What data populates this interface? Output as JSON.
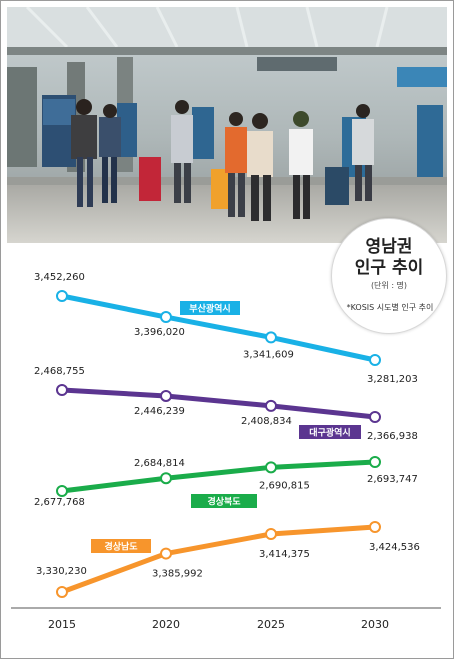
{
  "title_line1": "영남권",
  "title_line2": "인구 추이",
  "unit": "(단위 : 명)",
  "source": "*KOSIS 시도별 인구 추이",
  "chart_data": {
    "type": "line",
    "title": "영남권 인구 추이",
    "unit": "(단위 : 명)",
    "x": [
      "2015",
      "2020",
      "2025",
      "2030"
    ],
    "series": [
      {
        "name": "부산광역시",
        "color": "#19b1e6",
        "values": [
          3452260,
          3396020,
          3341609,
          3281203
        ],
        "labels": [
          "3,452,260",
          "3,396,020",
          "3,341,609",
          "3,281,203"
        ]
      },
      {
        "name": "대구광역시",
        "color": "#5b3590",
        "values": [
          2468755,
          2446239,
          2408834,
          2366938
        ],
        "labels": [
          "2,468,755",
          "2,446,239",
          "2,408,834",
          "2,366,938"
        ]
      },
      {
        "name": "경상북도",
        "color": "#1aac4a",
        "values": [
          2677768,
          2684814,
          2690815,
          2693747
        ],
        "labels": [
          "2,677,768",
          "2,684,814",
          "2,690,815",
          "2,693,747"
        ]
      },
      {
        "name": "경상남도",
        "color": "#f7952c",
        "values": [
          3330230,
          3385992,
          3414375,
          3424536
        ],
        "labels": [
          "3,330,230",
          "3,385,992",
          "3,414,375",
          "3,424,536"
        ]
      }
    ],
    "axis_color": "#555555"
  }
}
